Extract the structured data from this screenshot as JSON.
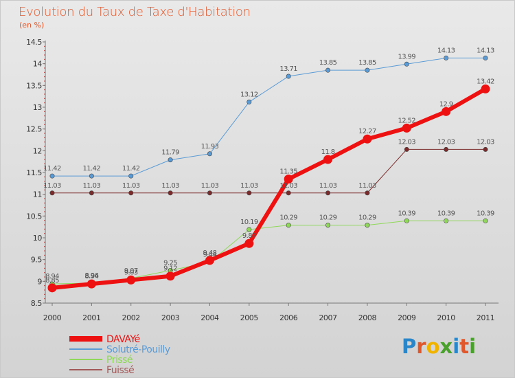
{
  "title": "Evolution du Taux de Taxe d'Habitation",
  "subtitle": "(en %)",
  "logo": {
    "letters": [
      {
        "ch": "P",
        "color": "#2a86c8"
      },
      {
        "ch": "r",
        "color": "#e0572c"
      },
      {
        "ch": "o",
        "color": "#f0b400"
      },
      {
        "ch": "x",
        "color": "#4aa02c"
      },
      {
        "ch": "i",
        "color": "#2a86c8"
      },
      {
        "ch": "t",
        "color": "#e0572c"
      },
      {
        "ch": "i",
        "color": "#4aa02c"
      }
    ]
  },
  "chart_data": {
    "type": "line",
    "title": "Evolution du Taux de Taxe d'Habitation",
    "ylabel": "(en %)",
    "xlabel": "",
    "x": [
      "2000",
      "2001",
      "2002",
      "2003",
      "2004",
      "2005",
      "2006",
      "2007",
      "2008",
      "2009",
      "2010",
      "2011"
    ],
    "ylim": [
      8.5,
      14.5
    ],
    "yticks": [
      8.5,
      9,
      9.5,
      10,
      10.5,
      11,
      11.5,
      12,
      12.5,
      13,
      13.5,
      14,
      14.5
    ],
    "grid": false,
    "legend_position": "bottom-left",
    "series": [
      {
        "name": "Fuissé",
        "color": "#7b2b2b",
        "legendColor": "#a35858",
        "width": 1,
        "emphasis": false,
        "values": [
          11.03,
          11.03,
          11.03,
          11.03,
          11.03,
          11.03,
          11.03,
          11.03,
          11.03,
          12.03,
          12.03,
          12.03
        ]
      },
      {
        "name": "Solutré-Pouilly",
        "color": "#5b9bd5",
        "legendColor": "#5b9bd5",
        "width": 1,
        "emphasis": false,
        "values": [
          11.42,
          11.42,
          11.42,
          11.79,
          11.93,
          13.12,
          13.71,
          13.85,
          13.85,
          13.99,
          14.13,
          14.13
        ]
      },
      {
        "name": "Prissé",
        "color": "#8fd85a",
        "legendColor": "#8fd85a",
        "width": 1,
        "emphasis": false,
        "values": [
          8.94,
          8.96,
          9.07,
          9.25,
          9.44,
          10.19,
          10.29,
          10.29,
          10.29,
          10.39,
          10.39,
          10.39
        ]
      },
      {
        "name": "DAVAYé",
        "color": "#ee1111",
        "legendColor": "#ee1111",
        "width": 6,
        "emphasis": true,
        "values": [
          8.85,
          8.94,
          9.03,
          9.12,
          9.48,
          9.87,
          11.35,
          11.8,
          12.27,
          12.52,
          12.9,
          13.42
        ]
      }
    ],
    "legend_order": [
      "DAVAYé",
      "Solutré-Pouilly",
      "Prissé",
      "Fuissé"
    ]
  }
}
